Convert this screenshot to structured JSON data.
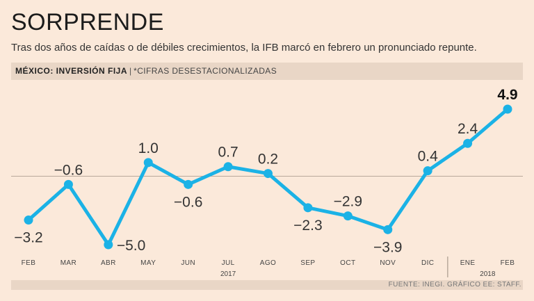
{
  "header": {
    "title": "SORPRENDE",
    "subtitle": "Tras dos años de caídas o de débiles crecimientos, la IFB marcó en febrero un pronunciado repunte."
  },
  "label_bar": {
    "main": "MÉXICO: INVERSIÓN FIJA",
    "separator": "|",
    "note": "*CIFRAS DESESTACIONALIZADAS"
  },
  "footer": {
    "source": "FUENTE: INEGI. GRÁFICO EE: STAFF."
  },
  "colors": {
    "line": "#1bb2e6",
    "background": "#fbe9da",
    "band": "#e9d6c6"
  },
  "chart_data": {
    "type": "line",
    "title": "MÉXICO: INVERSIÓN FIJA",
    "categories": [
      "FEB",
      "MAR",
      "ABR",
      "MAY",
      "JUN",
      "JUL",
      "AGO",
      "SEP",
      "OCT",
      "NOV",
      "DIC",
      "ENE",
      "FEB"
    ],
    "values": [
      -3.2,
      -0.6,
      -5.0,
      1.0,
      -0.6,
      0.7,
      0.2,
      -2.3,
      -2.9,
      -3.9,
      0.4,
      2.4,
      4.9
    ],
    "value_labels": [
      "−3.2",
      "−0.6",
      "−5.0",
      "1.0",
      "−0.6",
      "0.7",
      "0.2",
      "−2.3",
      "−2.9",
      "−3.9",
      "0.4",
      "2.4",
      "4.9"
    ],
    "label_positions": [
      "below",
      "above",
      "right",
      "above",
      "below",
      "above",
      "above",
      "below",
      "above",
      "below",
      "above",
      "above",
      "above"
    ],
    "year_labels": [
      {
        "label": "2017",
        "category_index": 5
      },
      {
        "label": "2018",
        "category_index": 11.5
      }
    ],
    "year_divider_after_index": 10,
    "baseline": 0,
    "ylim": [
      -5.0,
      4.9
    ],
    "xlabel": "",
    "ylabel": "",
    "grid": false
  }
}
